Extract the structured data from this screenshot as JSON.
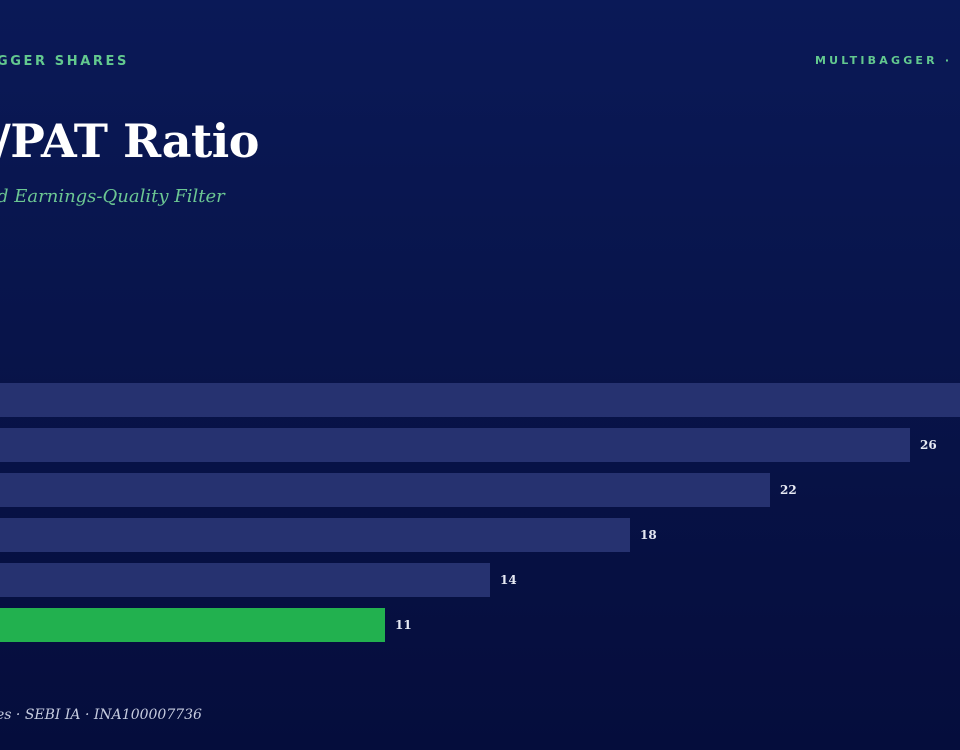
{
  "header": {
    "brand_left": "GGER SHARES",
    "brand_right": "MULTIBAGGER · D"
  },
  "title": "/PAT Ratio",
  "subtitle": "d Earnings-Quality Filter",
  "footer": "es · SEBI IA · INA100007736",
  "colors": {
    "background": "#08144a",
    "bar": "#263270",
    "highlight_bar": "#22b14f",
    "accent_text": "#63c98f"
  },
  "chart_data": {
    "type": "bar",
    "orientation": "horizontal",
    "values": [
      null,
      26,
      22,
      18,
      14,
      11
    ],
    "labels": [
      "",
      "26",
      "22",
      "18",
      "14",
      "11"
    ],
    "highlight_index": 5,
    "xlim": [
      0,
      27
    ]
  }
}
